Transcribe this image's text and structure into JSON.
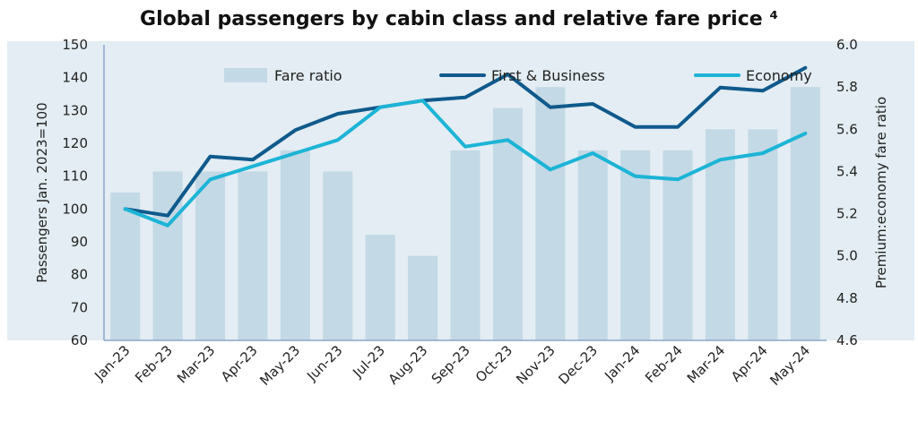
{
  "chart_data": {
    "type": "bar",
    "title": "Global passengers by cabin class and relative fare price ⁴",
    "categories": [
      "Jan-23",
      "Feb-23",
      "Mar-23",
      "Apr-23",
      "May-23",
      "Jun-23",
      "Jul-23",
      "Aug-23",
      "Sep-23",
      "Oct-23",
      "Nov-23",
      "Dec-23",
      "Jan-24",
      "Feb-24",
      "Mar-24",
      "Apr-24",
      "May-24"
    ],
    "ylabel_left": "Passengers Jan. 2023=100",
    "ylabel_right": "Premium:economy fare ratio",
    "ylim_left": [
      60,
      150
    ],
    "ylim_right": [
      4.6,
      6.0
    ],
    "yticks_left": [
      "60",
      "70",
      "80",
      "90",
      "100",
      "110",
      "120",
      "130",
      "140",
      "150"
    ],
    "yticks_right": [
      "4.6",
      "4.8",
      "5.0",
      "5.2",
      "5.4",
      "5.6",
      "5.8",
      "6.0"
    ],
    "legend_placement": "top",
    "grid": false,
    "series": [
      {
        "name": "Fare ratio",
        "kind": "bar",
        "axis": "right",
        "color": "#c3d9e5",
        "values": [
          5.3,
          5.4,
          5.4,
          5.4,
          5.5,
          5.4,
          5.1,
          5.0,
          5.5,
          5.7,
          5.8,
          5.5,
          5.5,
          5.5,
          5.6,
          5.6,
          5.8
        ]
      },
      {
        "name": "First & Business",
        "kind": "line",
        "axis": "left",
        "color": "#0f5a8c",
        "values": [
          100,
          98,
          116,
          115,
          124,
          129,
          131,
          133,
          134,
          141,
          131,
          132,
          125,
          125,
          137,
          136,
          143
        ]
      },
      {
        "name": "Economy",
        "kind": "line",
        "axis": "left",
        "color": "#1cb4d6",
        "values": [
          100,
          95,
          109,
          113,
          117,
          121,
          131,
          133,
          119,
          121,
          112,
          117,
          110,
          109,
          115,
          117,
          123
        ]
      }
    ]
  },
  "colors": {
    "plot_background": "#e3edf3",
    "axis": "#8aa8c8"
  }
}
